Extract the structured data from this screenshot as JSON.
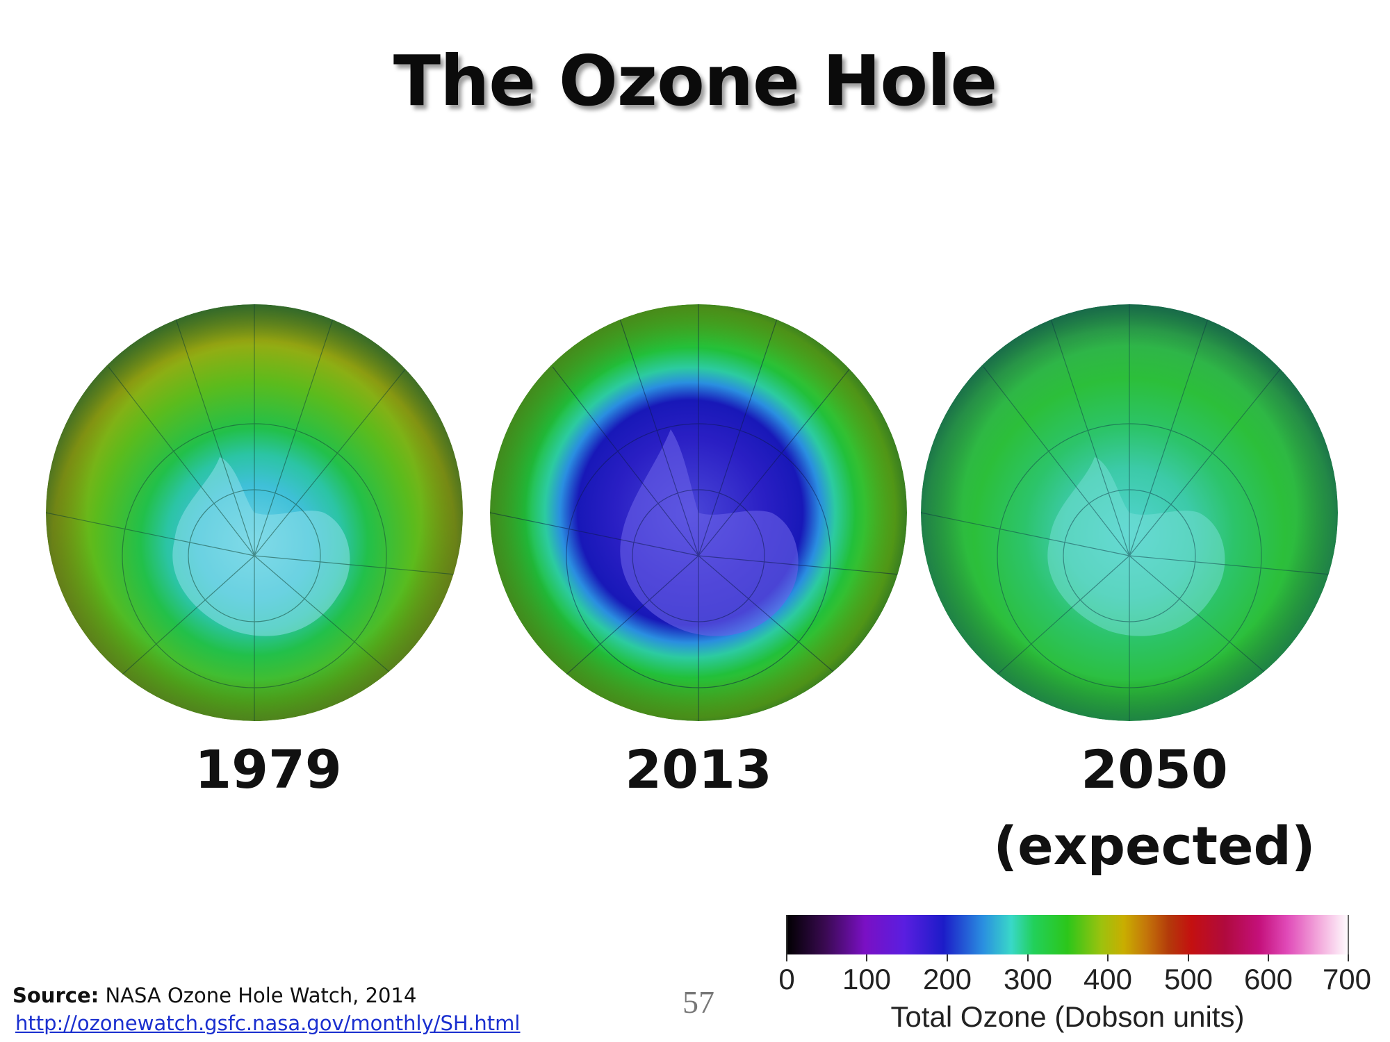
{
  "title": "The Ozone Hole",
  "globes": [
    {
      "label": "1979",
      "sublabel": "",
      "hole_level": "moderate"
    },
    {
      "label": "2013",
      "sublabel": "",
      "hole_level": "deep"
    },
    {
      "label": "2050",
      "sublabel": "(expected)",
      "hole_level": "recovered"
    }
  ],
  "colorbar": {
    "ticks": [
      "0",
      "100",
      "200",
      "300",
      "400",
      "500",
      "600",
      "700"
    ],
    "range": [
      0,
      700
    ],
    "title": "Total Ozone (Dobson units)"
  },
  "source": {
    "label": "Source:",
    "text": "NASA Ozone Hole Watch, 2014",
    "url": "http://ozonewatch.gsfc.nasa.gov/monthly/SH.html"
  },
  "page_number": "57"
}
